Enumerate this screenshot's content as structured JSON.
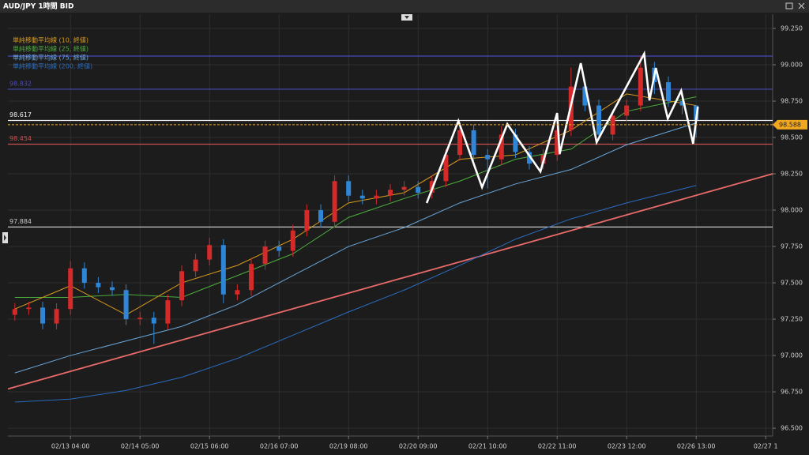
{
  "window": {
    "title": "AUD/JPY 1時間 BID"
  },
  "chart_data": {
    "type": "candlestick",
    "x": [
      -20,
      -15,
      -10,
      -5,
      0,
      5,
      10,
      15,
      20,
      25,
      30,
      35,
      40,
      45,
      50,
      55,
      60,
      65,
      70,
      75,
      80,
      85,
      90,
      95,
      100,
      105,
      110,
      115,
      120,
      125,
      130,
      135,
      140,
      145,
      150,
      155,
      160,
      165,
      170,
      175,
      180,
      185,
      190,
      195,
      200,
      205,
      210,
      215,
      220,
      225
    ],
    "open": [
      97.28,
      97.32,
      97.33,
      97.22,
      97.32,
      97.6,
      97.5,
      97.47,
      97.45,
      97.25,
      97.26,
      97.22,
      97.38,
      97.58,
      97.66,
      97.76,
      97.42,
      97.45,
      97.63,
      97.75,
      97.72,
      97.86,
      98.0,
      97.92,
      98.2,
      98.1,
      98.08,
      98.1,
      98.14,
      98.16,
      98.12,
      98.2,
      98.38,
      98.55,
      98.38,
      98.35,
      98.52,
      98.4,
      98.32,
      98.38,
      98.55,
      98.85,
      98.72,
      98.52,
      98.65,
      98.72,
      98.98,
      98.88,
      98.75,
      98.72
    ],
    "high": [
      97.36,
      97.37,
      97.37,
      97.36,
      97.65,
      97.64,
      97.54,
      97.51,
      97.49,
      97.3,
      97.3,
      97.42,
      97.62,
      97.7,
      97.81,
      97.8,
      97.49,
      97.67,
      97.79,
      97.79,
      97.9,
      98.04,
      98.04,
      98.24,
      98.24,
      98.14,
      98.14,
      98.18,
      98.2,
      98.2,
      98.24,
      98.42,
      98.59,
      98.59,
      98.42,
      98.58,
      98.56,
      98.44,
      98.42,
      98.65,
      98.98,
      98.89,
      98.76,
      98.69,
      98.76,
      99.06,
      99.02,
      98.92,
      98.82,
      98.72
    ],
    "low": [
      97.24,
      97.28,
      97.18,
      97.18,
      97.28,
      97.46,
      97.43,
      97.41,
      97.21,
      97.21,
      97.08,
      97.18,
      97.34,
      97.54,
      97.62,
      97.36,
      97.38,
      97.41,
      97.59,
      97.68,
      97.68,
      97.82,
      97.88,
      97.88,
      98.06,
      98.04,
      98.04,
      98.06,
      98.1,
      98.08,
      98.08,
      98.16,
      98.34,
      98.34,
      98.15,
      98.31,
      98.36,
      98.28,
      98.28,
      98.34,
      98.51,
      98.68,
      98.48,
      98.48,
      98.61,
      98.68,
      98.8,
      98.71,
      98.66,
      98.5
    ],
    "close": [
      97.32,
      97.33,
      97.22,
      97.32,
      97.6,
      97.5,
      97.47,
      97.45,
      97.25,
      97.26,
      97.22,
      97.38,
      97.58,
      97.66,
      97.76,
      97.42,
      97.45,
      97.63,
      97.75,
      97.72,
      97.86,
      98.0,
      97.92,
      98.2,
      98.1,
      98.08,
      98.1,
      98.14,
      98.16,
      98.12,
      98.2,
      98.38,
      98.55,
      98.38,
      98.35,
      98.52,
      98.4,
      98.32,
      98.38,
      98.55,
      98.85,
      98.72,
      98.52,
      98.65,
      98.72,
      98.98,
      98.88,
      98.75,
      98.72,
      98.62
    ],
    "up_color": "#d42a2a",
    "down_color": "#2f86d6",
    "xlim": [
      -22.5,
      252.5
    ],
    "xticks": [
      {
        "value": 0,
        "label": "02/13 04:00"
      },
      {
        "value": 25,
        "label": "02/14 05:00"
      },
      {
        "value": 50,
        "label": "02/15 06:00"
      },
      {
        "value": 75,
        "label": "02/16 07:00"
      },
      {
        "value": 100,
        "label": "02/19 08:00"
      },
      {
        "value": 125,
        "label": "02/20 09:00"
      },
      {
        "value": 150,
        "label": "02/21 10:00"
      },
      {
        "value": 175,
        "label": "02/22 11:00"
      },
      {
        "value": 200,
        "label": "02/23 12:00"
      },
      {
        "value": 225,
        "label": "02/26 13:00"
      },
      {
        "value": 250,
        "label": "02/27 1"
      }
    ],
    "ylim": [
      96.446,
      99.348
    ],
    "yticks": [
      {
        "value": 99.25,
        "label": "99.250"
      },
      {
        "value": 99.0,
        "label": "99.000"
      },
      {
        "value": 98.75,
        "label": "98.750"
      },
      {
        "value": 98.5,
        "label": "98.500"
      },
      {
        "value": 98.25,
        "label": "98.250"
      },
      {
        "value": 98.0,
        "label": "98.000"
      },
      {
        "value": 97.75,
        "label": "97.750"
      },
      {
        "value": 97.5,
        "label": "97.500"
      },
      {
        "value": 97.25,
        "label": "97.250"
      },
      {
        "value": 97.0,
        "label": "97.000"
      },
      {
        "value": 96.75,
        "label": "96.750"
      },
      {
        "value": 96.5,
        "label": "96.500"
      }
    ],
    "grid": true,
    "moving_averages": {
      "x": [
        -20,
        0,
        20,
        40,
        60,
        80,
        100,
        120,
        140,
        160,
        180,
        200,
        225
      ],
      "series": [
        {
          "name": "単純移動平均線 (10, 終値)",
          "color": "#d89a1c",
          "values": [
            97.32,
            97.48,
            97.28,
            97.5,
            97.62,
            97.8,
            98.05,
            98.12,
            98.35,
            98.38,
            98.55,
            98.8,
            98.72
          ]
        },
        {
          "name": "単純移動平均線 (25, 終値)",
          "color": "#4cae3c",
          "values": [
            97.4,
            97.4,
            97.42,
            97.4,
            97.55,
            97.7,
            97.95,
            98.08,
            98.2,
            98.35,
            98.42,
            98.68,
            98.78
          ]
        },
        {
          "name": "単純移動平均線 (75, 終値)",
          "color": "#6aa6d8",
          "values": [
            96.88,
            97.0,
            97.1,
            97.2,
            97.35,
            97.55,
            97.75,
            97.88,
            98.05,
            98.18,
            98.28,
            98.45,
            98.6
          ]
        },
        {
          "name": "単純移動平均線 (200, 終値)",
          "color": "#2a6cc0",
          "values": [
            96.68,
            96.7,
            96.76,
            96.85,
            96.98,
            97.14,
            97.3,
            97.45,
            97.62,
            97.8,
            97.94,
            98.05,
            98.17
          ]
        }
      ]
    },
    "levels": [
      {
        "value": 99.06,
        "color": "#4a4ab8",
        "labeled": false
      },
      {
        "value": 98.832,
        "color": "#4a4ab8",
        "labeled": true
      },
      {
        "value": 98.617,
        "color": "#f0f0f0",
        "labeled": true
      },
      {
        "value": 98.454,
        "color": "#c85050",
        "labeled": true
      },
      {
        "value": 97.884,
        "color": "#c8c8c8",
        "labeled": true
      }
    ],
    "current_price": {
      "value": 98.588,
      "color": "#f0a820"
    },
    "trendline": {
      "x": [
        -22.5,
        252.5
      ],
      "values": [
        96.77,
        98.25
      ],
      "color": "#e86a6a"
    },
    "pattern": {
      "x": [
        128.1,
        139.5,
        148.0,
        157.1,
        169.0,
        175.0,
        175.9,
        183.5,
        189.2,
        206.3,
        208.2,
        210.5,
        214.8,
        219.6,
        223.9,
        225.6
      ],
      "values": [
        98.049,
        98.614,
        98.158,
        98.592,
        98.266,
        98.668,
        98.386,
        99.011,
        98.467,
        99.076,
        98.755,
        98.978,
        98.63,
        98.821,
        98.457,
        98.712
      ],
      "color": "#ffffff"
    }
  }
}
